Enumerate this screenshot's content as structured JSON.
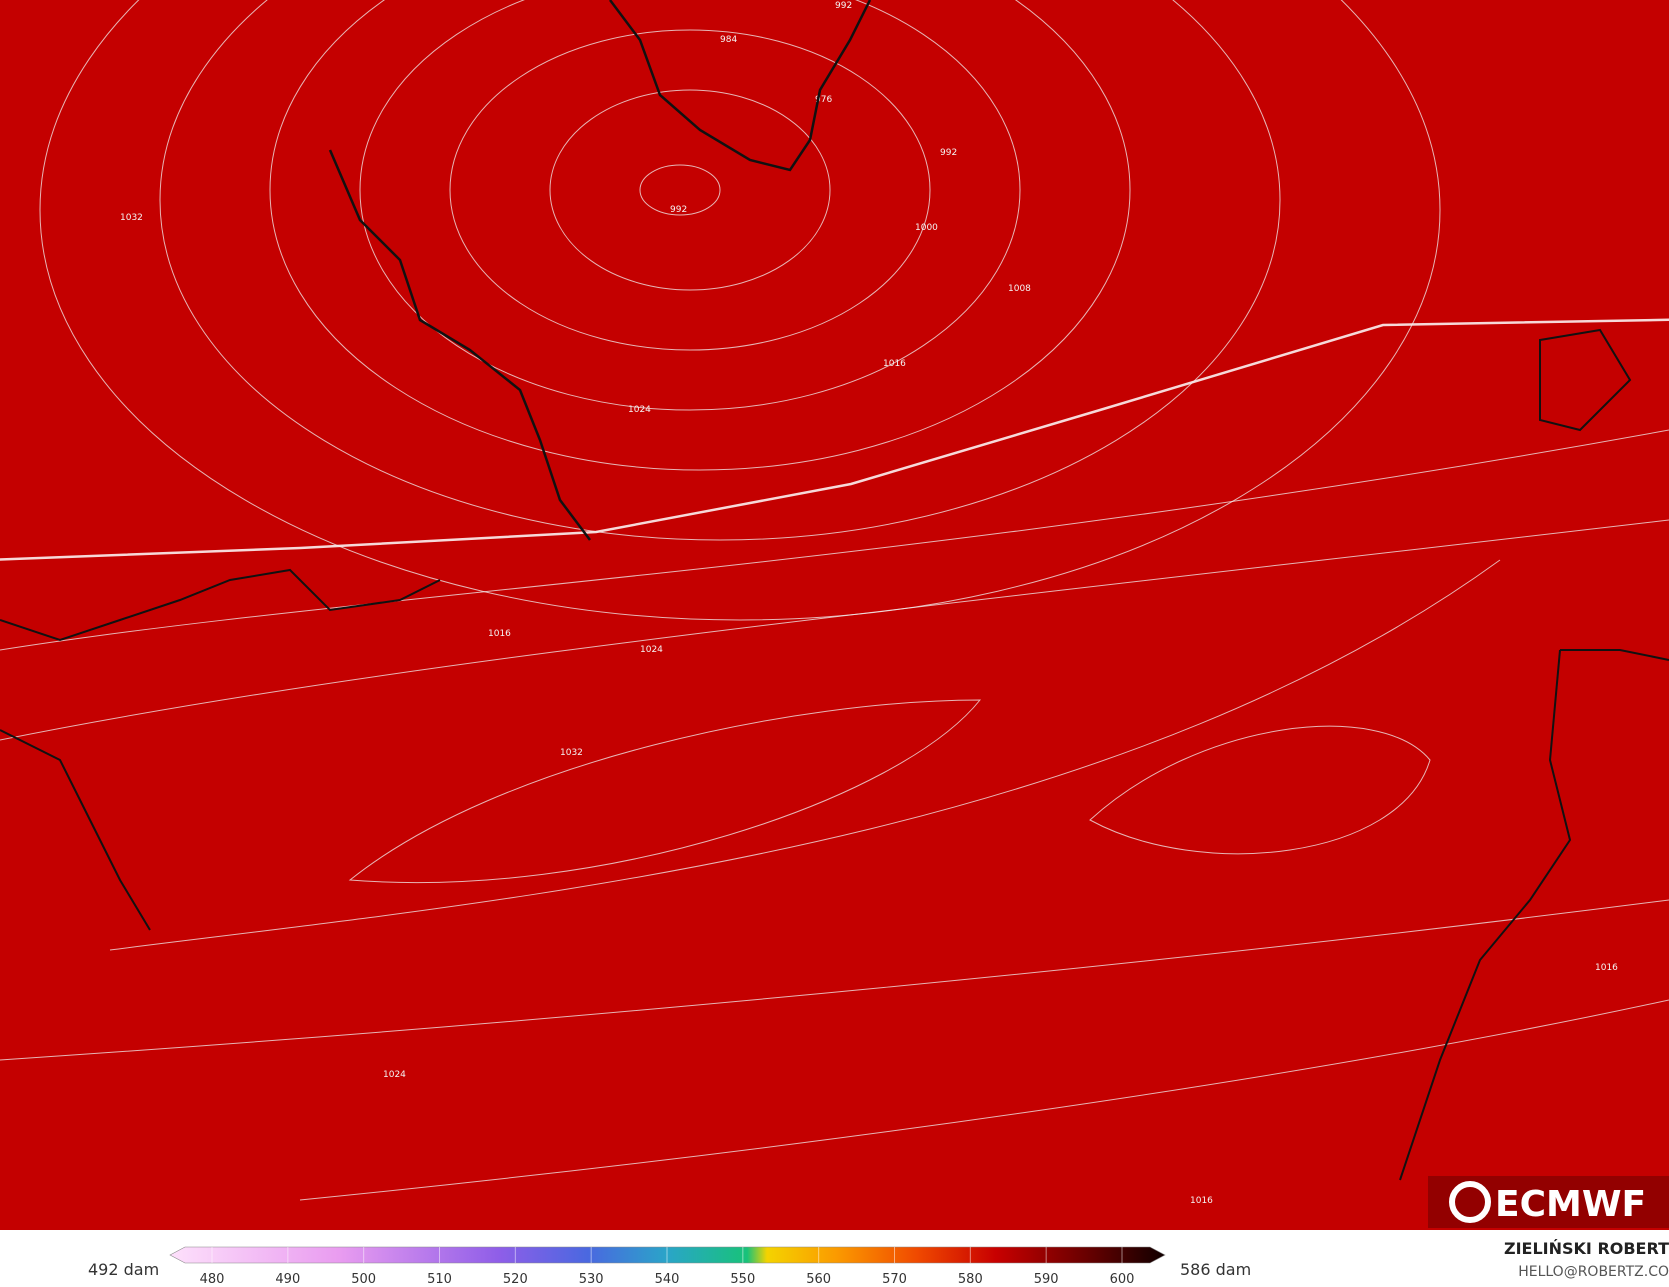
{
  "isobar_labels": [
    "992",
    "984",
    "976",
    "992",
    "992",
    "1000",
    "1008",
    "1016",
    "1024",
    "1032",
    "1016",
    "1024",
    "1032",
    "1024",
    "1016",
    "1016"
  ],
  "colorbar": {
    "min_label": "492 dam",
    "max_label": "586 dam",
    "ticks": [
      480,
      490,
      500,
      510,
      520,
      530,
      540,
      550,
      560,
      570,
      580,
      590,
      600
    ]
  },
  "logo": "ECMWF",
  "credit": {
    "author": "ZIELIŃSKI ROBERT",
    "contact": "HELLO@ROBERTZ.CO"
  }
}
